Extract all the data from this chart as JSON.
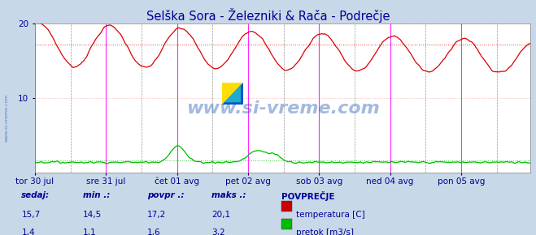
{
  "title": "Selška Sora - Železniki & Rača - Podrečje",
  "title_color": "#000099",
  "title_fontsize": 10.5,
  "bg_color": "#c8d8e8",
  "plot_bg_color": "#ffffff",
  "grid_color": "#ffaaaa",
  "ylim": [
    0,
    20
  ],
  "yticks": [
    10,
    20
  ],
  "temp_color": "#dd0000",
  "flow_color": "#00bb00",
  "avg_temp": 17.2,
  "avg_flow": 1.6,
  "watermark": "www.si-vreme.com",
  "watermark_color": "#3366bb",
  "watermark_alpha": 0.45,
  "watermark_fontsize": 16,
  "tick_labels": [
    "tor 30 jul",
    "sre 31 jul",
    "čet 01 avg",
    "pet 02 avg",
    "sob 03 avg",
    "ned 04 avg",
    "pon 05 avg"
  ],
  "label_color": "#000099",
  "label_fontsize": 7.5,
  "legend_title": "POVPREČJE",
  "legend_items": [
    "temperatura [C]",
    "pretok [m3/s]"
  ],
  "legend_colors": [
    "#cc0000",
    "#00bb00"
  ],
  "table_headers": [
    "sedaj:",
    "min .:",
    "povpr .:",
    "maks .:"
  ],
  "table_values_temp": [
    "15,7",
    "14,5",
    "17,2",
    "20,1"
  ],
  "table_values_flow": [
    "1,4",
    "1,1",
    "1,6",
    "3,2"
  ],
  "n_points": 336,
  "magenta_vline_indices": [
    0,
    48,
    96,
    144,
    192,
    240,
    288,
    335
  ],
  "dashed_vline_indices": [
    24,
    72,
    120,
    168,
    216,
    264,
    312
  ]
}
